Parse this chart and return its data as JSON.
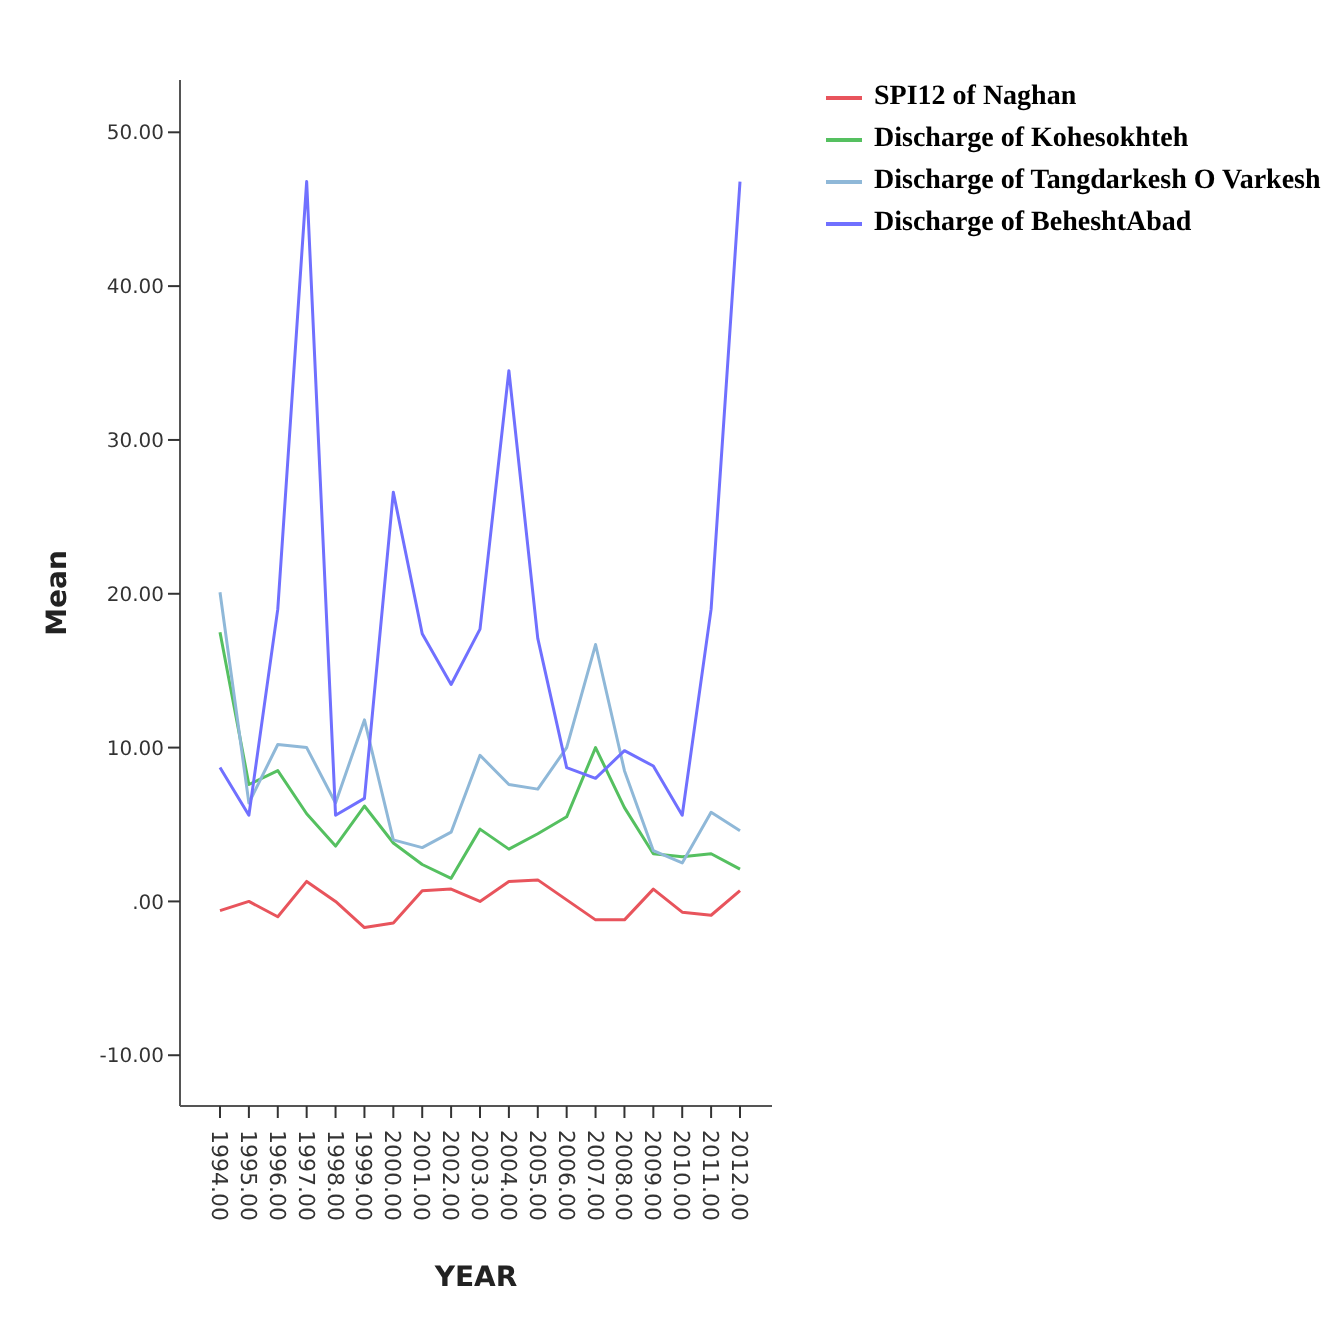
{
  "chart_data": {
    "type": "line",
    "xlabel": "YEAR",
    "ylabel": "Mean",
    "categories": [
      "1994.00",
      "1995.00",
      "1996.00",
      "1997.00",
      "1998.00",
      "1999.00",
      "2000.00",
      "2001.00",
      "2002.00",
      "2003.00",
      "2004.00",
      "2005.00",
      "2006.00",
      "2007.00",
      "2008.00",
      "2009.00",
      "2010.00",
      "2011.00",
      "2012.00"
    ],
    "series": [
      {
        "name": "SPI12 of Naghan",
        "color": "#e8545c",
        "values": [
          -0.6,
          0,
          -1,
          1.3,
          0,
          -1.7,
          -1.4,
          0.7,
          0.8,
          0,
          1.3,
          1.4,
          0.1,
          -1.2,
          -1.2,
          0.8,
          -0.7,
          -0.9,
          0.7
        ]
      },
      {
        "name": "Discharge of Kohesokhteh",
        "color": "#55c060",
        "values": [
          17.5,
          7.6,
          8.5,
          5.7,
          3.6,
          6.2,
          3.8,
          2.4,
          1.5,
          4.7,
          3.4,
          4.4,
          5.5,
          10,
          6.1,
          3.1,
          2.9,
          3.1,
          2.1
        ]
      },
      {
        "name": "Discharge of Tangdarkesh O Varkesh",
        "color": "#8fb8d8",
        "values": [
          20.1,
          6.4,
          10.2,
          10,
          6.4,
          11.8,
          4,
          3.5,
          4.5,
          9.5,
          7.6,
          7.3,
          10,
          16.7,
          8.5,
          3.3,
          2.5,
          5.8,
          4.6
        ]
      },
      {
        "name": "Discharge of BeheshtAbad",
        "color": "#7070ff",
        "values": [
          8.7,
          5.6,
          19,
          46.8,
          5.6,
          6.7,
          26.6,
          17.4,
          14.1,
          17.7,
          34.5,
          17.1,
          8.7,
          8,
          9.8,
          8.8,
          5.6,
          19,
          46.8
        ]
      }
    ],
    "ylim": [
      -13.3,
      53.4
    ],
    "yticks": [
      {
        "value": -10,
        "label": "-10.00"
      },
      {
        "value": 0,
        "label": ".00"
      },
      {
        "value": 10,
        "label": "10.00"
      },
      {
        "value": 20,
        "label": "20.00"
      },
      {
        "value": 30,
        "label": "30.00"
      },
      {
        "value": 40,
        "label": "40.00"
      },
      {
        "value": 50,
        "label": "50.00"
      }
    ],
    "legend": "top right",
    "grid": false,
    "marker": "none",
    "line_style": "solid"
  }
}
